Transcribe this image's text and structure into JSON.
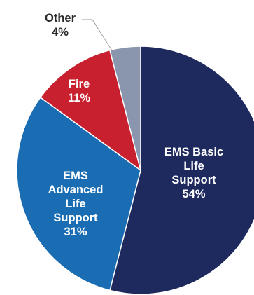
{
  "chart_data": {
    "type": "pie",
    "slices": [
      {
        "name": "EMS Basic Life Support",
        "value": 54,
        "value_label": "54%",
        "label_lines": [
          "EMS Basic",
          "Life",
          "Support"
        ],
        "color": "#1e2a5e",
        "text_color": "#ffffff"
      },
      {
        "name": "EMS Advanced Life Support",
        "value": 31,
        "value_label": "31%",
        "label_lines": [
          "EMS",
          "Advanced",
          "Life",
          "Support"
        ],
        "color": "#1a6cb3",
        "text_color": "#ffffff"
      },
      {
        "name": "Fire",
        "value": 11,
        "value_label": "11%",
        "label_lines": [
          "Fire"
        ],
        "color": "#c8202e",
        "text_color": "#ffffff"
      },
      {
        "name": "Other",
        "value": 4,
        "value_label": "4%",
        "label_lines": [
          "Other"
        ],
        "color": "#8a96ae",
        "text_color": "#2a2a2a"
      }
    ],
    "start": "12 o'clock",
    "direction": "clockwise"
  }
}
